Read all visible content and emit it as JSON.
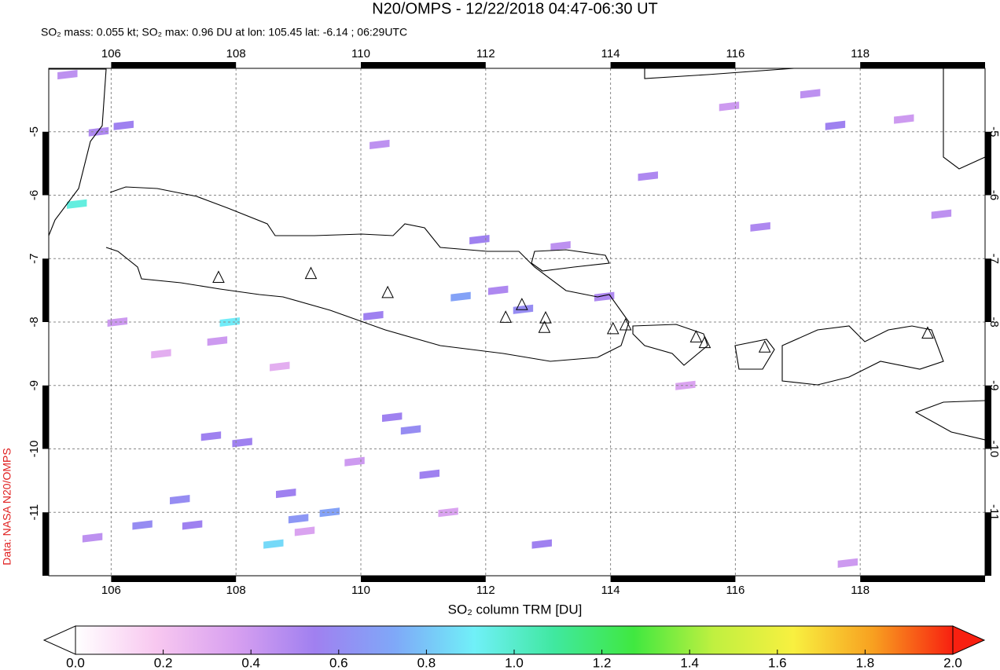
{
  "chart_data": {
    "type": "map",
    "title": "N20/OMPS - 12/22/2018 04:47-06:30 UT",
    "subtitle": "SO₂ mass: 0.055 kt; SO₂ max: 0.96 DU at lon: 105.45 lat: -6.14 ; 06:29UTC",
    "credit": "Data: NASA N20/OMPS",
    "xlim": [
      105,
      120
    ],
    "ylim": [
      -12,
      -4
    ],
    "xticks": [
      106,
      108,
      110,
      112,
      114,
      116,
      118
    ],
    "yticks": [
      -5,
      -6,
      -7,
      -8,
      -9,
      -10,
      -11
    ],
    "grid": true,
    "volcanoes": {
      "lon": [
        107.72,
        109.2,
        110.43,
        112.32,
        112.58,
        112.96,
        112.94,
        114.04,
        114.24,
        115.37,
        115.51,
        116.47,
        119.08
      ],
      "lat": [
        -7.3,
        -7.24,
        -7.54,
        -7.93,
        -7.73,
        -7.94,
        -8.09,
        -8.11,
        -8.05,
        -8.24,
        -8.33,
        -8.4,
        -8.18
      ]
    },
    "so2_max": {
      "lon": 105.45,
      "lat": -6.14,
      "value": 0.96
    },
    "pixels": {
      "lon": [
        105.3,
        105.8,
        106.2,
        107.1,
        107.3,
        107.9,
        108.6,
        109.5,
        110.2,
        110.5,
        110.8,
        111.1,
        111.6,
        111.9,
        112.2,
        112.6,
        113.2,
        114.6,
        115.9,
        116.4,
        117.2,
        117.6,
        108.1,
        106.5,
        107.6,
        109.0,
        110.3,
        113.9,
        118.7,
        119.3,
        106.1,
        108.8,
        105.7,
        107.7,
        109.9,
        112.9,
        115.2,
        117.8,
        106.8,
        109.1,
        108.7,
        111.4
      ],
      "lat": [
        -4.1,
        -5.0,
        -4.9,
        -10.8,
        -11.2,
        -8.0,
        -11.5,
        -11.0,
        -7.9,
        -9.5,
        -9.7,
        -10.4,
        -7.6,
        -6.7,
        -7.5,
        -7.8,
        -6.8,
        -5.7,
        -4.6,
        -6.5,
        -4.4,
        -4.9,
        -9.9,
        -11.2,
        -9.8,
        -11.1,
        -5.2,
        -7.6,
        -4.8,
        -6.3,
        -8.0,
        -10.7,
        -11.4,
        -8.3,
        -10.2,
        -11.5,
        -9.0,
        -11.8,
        -8.5,
        -11.3,
        -8.7,
        -11.0
      ],
      "values": [
        0.45,
        0.5,
        0.55,
        0.6,
        0.55,
        0.9,
        0.85,
        0.7,
        0.55,
        0.55,
        0.6,
        0.55,
        0.7,
        0.55,
        0.5,
        0.6,
        0.45,
        0.5,
        0.4,
        0.5,
        0.45,
        0.55,
        0.55,
        0.6,
        0.55,
        0.65,
        0.45,
        0.5,
        0.4,
        0.45,
        0.4,
        0.55,
        0.45,
        0.4,
        0.4,
        0.55,
        0.35,
        0.4,
        0.3,
        0.35,
        0.3,
        0.35
      ]
    },
    "colorbar": {
      "label": "SO₂ column TRM [DU]",
      "lim": [
        0,
        2
      ],
      "colors": [
        "#ffffff",
        "#f8c8f0",
        "#d8a0f0",
        "#a080f0",
        "#7fa8f8",
        "#70f0f8",
        "#40e8a0",
        "#40e840",
        "#c0f040",
        "#f8f040",
        "#f8a020",
        "#f82010"
      ],
      "ticks": [
        {
          "value": 0,
          "label": "0.0"
        },
        {
          "value": 0.2,
          "label": "0.2"
        },
        {
          "value": 0.4,
          "label": "0.4"
        },
        {
          "value": 0.6,
          "label": "0.6"
        },
        {
          "value": 0.8,
          "label": "0.8"
        },
        {
          "value": 1,
          "label": "1.0"
        },
        {
          "value": 1.2,
          "label": "1.2"
        },
        {
          "value": 1.4,
          "label": "1.4"
        },
        {
          "value": 1.6,
          "label": "1.6"
        },
        {
          "value": 1.8,
          "label": "1.8"
        },
        {
          "value": 2,
          "label": "2.0"
        }
      ]
    }
  }
}
